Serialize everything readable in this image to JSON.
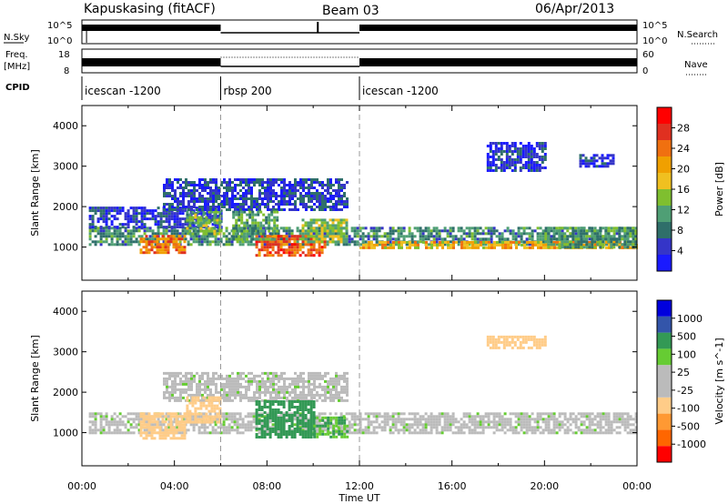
{
  "header": {
    "station": "Kapuskasing (fitACF)",
    "beam": "Beam 03",
    "date": "06/Apr/2013"
  },
  "top_panels": {
    "nsky_label": "N.Sky",
    "nsky_top": "10^5",
    "nsky_bottom": "10^0",
    "nsearch_top": "10^5",
    "nsearch_bottom": "10^0",
    "nsearch_label": "N.Search",
    "freq_label_1": "Freq.",
    "freq_label_2": "[MHz]",
    "freq_top": "18",
    "freq_bottom": "8",
    "nave_top": "60",
    "nave_bottom": "0",
    "nave_label": "Nave",
    "cpid_label": "CPID",
    "modes": [
      {
        "label": "icescan -1200",
        "start_hour": 0,
        "end_hour": 6
      },
      {
        "label": "rbsp 200",
        "start_hour": 6,
        "end_hour": 12
      },
      {
        "label": "icescan -1200",
        "start_hour": 12,
        "end_hour": 24
      }
    ]
  },
  "colors": {
    "power": [
      "#1a1aff",
      "#3535c8",
      "#2f6f6a",
      "#4f9f75",
      "#7fbf2f",
      "#f0c020",
      "#f0a000",
      "#f07010",
      "#e03020",
      "#ff0000"
    ],
    "velocity": [
      "#ff0000",
      "#ff6600",
      "#ff9933",
      "#ffcc88",
      "#bbbbbb",
      "#bbbbbb",
      "#66cc33",
      "#339955",
      "#3355aa",
      "#0000dd"
    ],
    "ground_scatter": "#bbbbbb"
  },
  "chart_data": [
    {
      "type": "heatmap",
      "name_in_figure": "Power",
      "xlabel": "Time UT",
      "ylabel": "Slant Range [km]",
      "x_unit": "hour UT",
      "xlim": [
        0,
        24
      ],
      "ylim": [
        180,
        4500
      ],
      "yticks": [
        1000,
        2000,
        3000,
        4000
      ],
      "colorbar_label": "Power [dB]",
      "colorbar_ticks": [
        "4",
        "8",
        "12",
        "16",
        "20",
        "24",
        "28"
      ],
      "colorbar_range": [
        0,
        30
      ],
      "regions": [
        {
          "t0": 0.3,
          "t1": 24,
          "r0": 1050,
          "r1": 1500,
          "level": 9
        },
        {
          "t0": 0.3,
          "t1": 6,
          "r0": 1500,
          "r1": 2000,
          "level": 4
        },
        {
          "t0": 2.5,
          "t1": 4.5,
          "r0": 850,
          "r1": 1300,
          "level": 22
        },
        {
          "t0": 4.5,
          "t1": 6,
          "r0": 1300,
          "r1": 1900,
          "level": 12
        },
        {
          "t0": 3.5,
          "t1": 11.5,
          "r0": 1900,
          "r1": 2700,
          "level": 5
        },
        {
          "t0": 7.5,
          "t1": 10.5,
          "r0": 800,
          "r1": 1300,
          "level": 24
        },
        {
          "t0": 9.5,
          "t1": 11.5,
          "r0": 1100,
          "r1": 1700,
          "level": 13
        },
        {
          "t0": 6.5,
          "t1": 8.5,
          "r0": 1200,
          "r1": 1900,
          "level": 11
        },
        {
          "t0": 12,
          "t1": 24,
          "r0": 950,
          "r1": 1150,
          "level": 18
        },
        {
          "t0": 20,
          "t1": 24,
          "r0": 1000,
          "r1": 1500,
          "level": 10
        },
        {
          "t0": 17.5,
          "t1": 20,
          "r0": 2900,
          "r1": 3600,
          "level": 4
        },
        {
          "t0": 21.5,
          "t1": 23,
          "r0": 3000,
          "r1": 3300,
          "level": 4
        }
      ]
    },
    {
      "type": "heatmap",
      "name_in_figure": "Velocity",
      "xlabel": "Time UT",
      "ylabel": "Slant Range [km]",
      "x_unit": "hour UT",
      "xlim": [
        0,
        24
      ],
      "ylim": [
        180,
        4500
      ],
      "xticks": [
        "00:00",
        "04:00",
        "08:00",
        "12:00",
        "16:00",
        "20:00",
        "00:00"
      ],
      "xtick_hours": [
        0,
        4,
        8,
        12,
        16,
        20,
        24
      ],
      "yticks": [
        1000,
        2000,
        3000,
        4000
      ],
      "colorbar_label": "Velocity [m s^-1]",
      "colorbar_ticks": [
        "-1000",
        "-500",
        "-100",
        "-25",
        "25",
        "100",
        "500",
        "1000"
      ],
      "regions": [
        {
          "t0": 0.3,
          "t1": 24,
          "r0": 1000,
          "r1": 1500,
          "value": 0
        },
        {
          "t0": 3.5,
          "t1": 11.5,
          "r0": 1800,
          "r1": 2500,
          "value": 0
        },
        {
          "t0": 2.5,
          "t1": 4.5,
          "r0": 850,
          "r1": 1500,
          "value": -400
        },
        {
          "t0": 4.5,
          "t1": 6,
          "r0": 1250,
          "r1": 1900,
          "value": -250
        },
        {
          "t0": 7.5,
          "t1": 10,
          "r0": 900,
          "r1": 1800,
          "value": 300
        },
        {
          "t0": 10,
          "t1": 11.5,
          "r0": 900,
          "r1": 1400,
          "value": 90
        },
        {
          "t0": 17.5,
          "t1": 20,
          "r0": 3100,
          "r1": 3400,
          "value": -200
        }
      ]
    }
  ]
}
